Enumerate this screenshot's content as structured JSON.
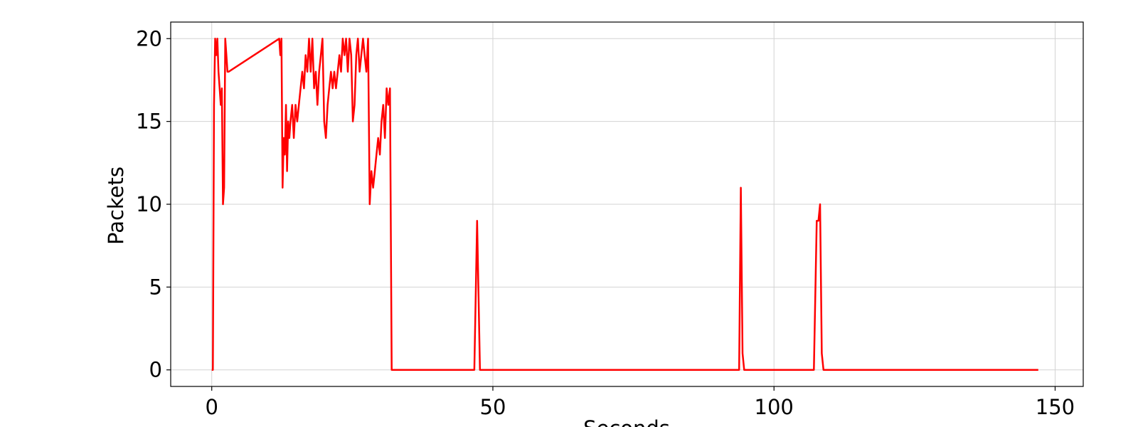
{
  "chart_data": {
    "type": "line",
    "xlabel": "Seconds",
    "ylabel": "Packets",
    "xlim": [
      -7.3,
      155
    ],
    "ylim": [
      -1,
      21
    ],
    "xticks": [
      0,
      50,
      100,
      150
    ],
    "yticks": [
      0,
      5,
      10,
      15,
      20
    ],
    "grid": true,
    "line_color": "#ff0000",
    "series": [
      {
        "x": [
          0,
          0.2,
          0.4,
          0.6,
          0.8,
          1.0,
          1.2,
          1.4,
          1.6,
          1.8,
          2.0,
          2.2,
          2.4,
          2.6,
          2.8,
          3.0,
          12.0,
          12.2,
          12.4,
          12.6,
          12.8,
          13.0,
          13.2,
          13.4,
          13.6,
          13.8,
          14.0,
          14.3,
          14.6,
          14.9,
          15.2,
          15.5,
          15.8,
          16.1,
          16.4,
          16.7,
          17.0,
          17.3,
          17.6,
          17.9,
          18.2,
          18.5,
          18.8,
          19.1,
          19.4,
          19.7,
          20.0,
          20.3,
          20.6,
          20.9,
          21.2,
          21.5,
          21.8,
          22.1,
          22.4,
          22.7,
          23.0,
          23.3,
          23.6,
          23.9,
          24.2,
          24.5,
          24.8,
          25.1,
          25.4,
          25.7,
          26.0,
          26.3,
          26.6,
          26.9,
          27.2,
          27.5,
          27.8,
          28.1,
          28.4,
          28.7,
          29.0,
          29.3,
          29.6,
          29.9,
          30.2,
          30.5,
          30.8,
          31.1,
          31.4,
          31.7,
          32.0,
          46.7,
          47.2,
          47.7,
          48.2,
          93.8,
          94.1,
          94.4,
          94.7,
          107.1,
          107.6,
          107.9,
          108.2,
          108.5,
          108.8,
          147
        ],
        "y": [
          0,
          0,
          16,
          20,
          19,
          20,
          18,
          17,
          16,
          17,
          10,
          11,
          20,
          19,
          18,
          18,
          20,
          19,
          20,
          11,
          14,
          13,
          16,
          12,
          15,
          14,
          15,
          16,
          14,
          16,
          15,
          16,
          17,
          18,
          17,
          19,
          18,
          20,
          18,
          20,
          17,
          18,
          16,
          18,
          19,
          20,
          15,
          14,
          16,
          17,
          18,
          17,
          18,
          17,
          18,
          19,
          18,
          20,
          19,
          20,
          18,
          20,
          19,
          15,
          16,
          19,
          20,
          18,
          19,
          20,
          19,
          18,
          20,
          10,
          12,
          11,
          12,
          13,
          14,
          13,
          15,
          16,
          14,
          17,
          16,
          17,
          0,
          0,
          9,
          0,
          0,
          0,
          11,
          1,
          0,
          0,
          9,
          9,
          10,
          1,
          0,
          0
        ]
      }
    ]
  }
}
